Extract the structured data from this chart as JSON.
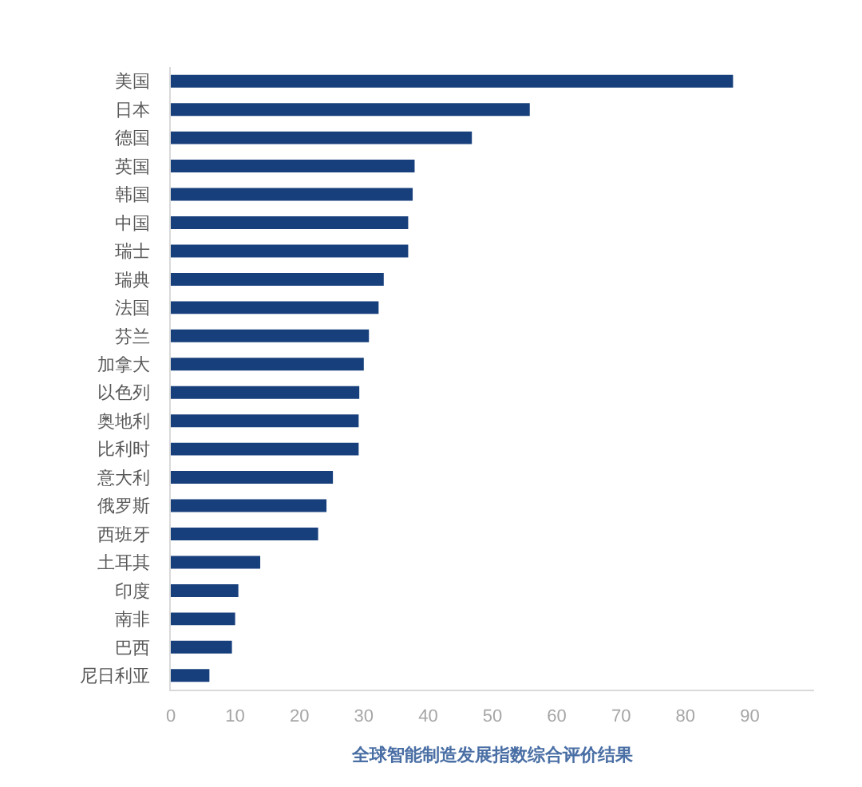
{
  "chart_data": {
    "type": "bar",
    "orientation": "horizontal",
    "categories": [
      "美国",
      "日本",
      "德国",
      "英国",
      "韩国",
      "中国",
      "瑞士",
      "瑞典",
      "法国",
      "芬兰",
      "加拿大",
      "以色列",
      "奥地利",
      "比利时",
      "意大利",
      "俄罗斯",
      "西班牙",
      "土耳其",
      "印度",
      "南非",
      "巴西",
      "尼日利亚"
    ],
    "values": [
      87.4,
      55.8,
      46.8,
      37.9,
      37.6,
      36.9,
      36.9,
      33.1,
      32.3,
      30.8,
      30.0,
      29.3,
      29.2,
      29.2,
      25.2,
      24.2,
      22.9,
      13.9,
      10.5,
      10.0,
      9.5,
      6.0
    ],
    "color": "#173f7c",
    "xlabel": "全球智能制造发展指数综合评价结果",
    "xlim": [
      0,
      100
    ],
    "xticks": [
      0,
      10,
      20,
      30,
      40,
      50,
      60,
      70,
      80,
      90
    ]
  }
}
